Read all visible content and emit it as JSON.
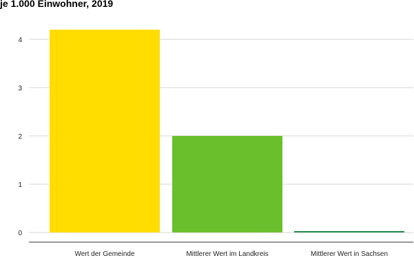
{
  "chart_data": {
    "type": "bar",
    "title": "je 1.000 Einwohner, 2019",
    "xlabel": "",
    "ylabel": "",
    "categories": [
      "Wert der Gemeinde",
      "Mittlerer Wert im Landkreis",
      "Mittlerer Wert in Sachsen"
    ],
    "values": [
      4.2,
      2.0,
      0.02
    ],
    "colors": [
      "#FFDD00",
      "#6ABF2D",
      "#1E8A4A"
    ],
    "ylim": [
      0,
      4.4
    ],
    "yticks": [
      0,
      1,
      2,
      3,
      4
    ],
    "grid": true,
    "legend": "none"
  }
}
